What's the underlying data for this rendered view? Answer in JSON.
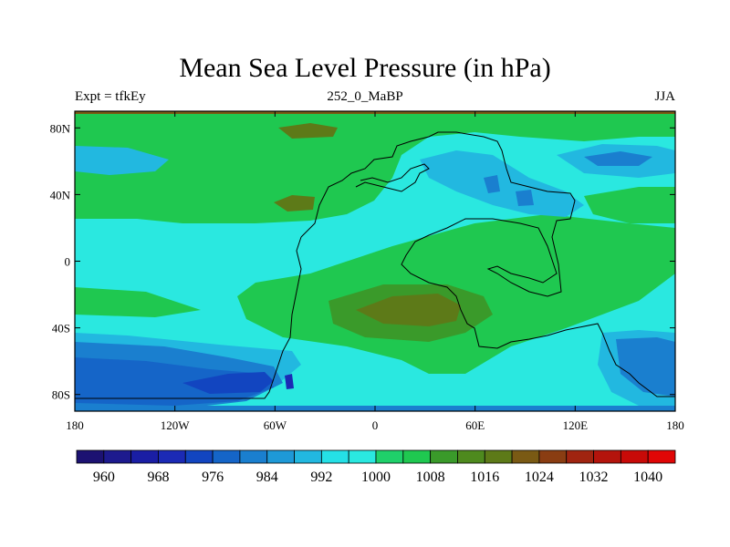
{
  "title": "Mean Sea Level Pressure (in hPa)",
  "left_label": "Expt = tfkEy",
  "center_label": "252_0_MaBP",
  "right_label": "JJA",
  "map": {
    "variable": "Mean Sea Level Pressure",
    "units": "hPa",
    "projection": "cylindrical equidistant",
    "lon_range": [
      -180,
      180
    ],
    "lat_range": [
      -90,
      90
    ],
    "x_ticks": [
      {
        "lon": -180,
        "label": "180"
      },
      {
        "lon": -120,
        "label": "120W"
      },
      {
        "lon": -60,
        "label": "60W"
      },
      {
        "lon": 0,
        "label": "0"
      },
      {
        "lon": 60,
        "label": "60E"
      },
      {
        "lon": 120,
        "label": "120E"
      },
      {
        "lon": 180,
        "label": "180"
      }
    ],
    "y_ticks": [
      {
        "lat": 80,
        "label": "80N"
      },
      {
        "lat": 40,
        "label": "40N"
      },
      {
        "lat": 0,
        "label": "0"
      },
      {
        "lat": -40,
        "label": "40S"
      },
      {
        "lat": -80,
        "label": "80S"
      }
    ]
  },
  "colorbar": {
    "levels": [
      960,
      964,
      968,
      972,
      976,
      980,
      984,
      988,
      992,
      996,
      1000,
      1004,
      1008,
      1012,
      1016,
      1020,
      1024,
      1028,
      1032,
      1036,
      1040
    ],
    "labels": [
      "960",
      "968",
      "976",
      "984",
      "992",
      "1000",
      "1008",
      "1016",
      "1024",
      "1032",
      "1040"
    ],
    "colors": [
      "#1c1272",
      "#1d1a8e",
      "#1a1ea4",
      "#1b2ab5",
      "#1245c0",
      "#1565c8",
      "#1a7fcf",
      "#1e99d7",
      "#22b8e0",
      "#25e0e6",
      "#2ae8e0",
      "#1fd06a",
      "#1fc850",
      "#3a9a2a",
      "#4e8a1e",
      "#5d7a18",
      "#7a5a14",
      "#8a3d12",
      "#a02410",
      "#b4140c",
      "#c80a08",
      "#e00606"
    ]
  }
}
